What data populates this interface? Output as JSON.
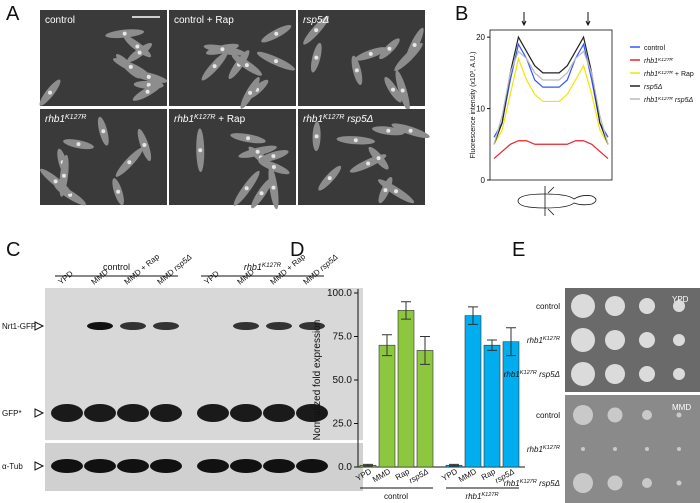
{
  "panels": {
    "a": {
      "label": "A",
      "images": [
        [
          {
            "t": "control"
          }
        ],
        [
          {
            "t": "control + Rap"
          }
        ],
        [
          {
            "i": "rsp5Δ"
          }
        ],
        [
          {
            "i": "rhb1"
          },
          {
            "sup": "K127R"
          }
        ],
        [
          {
            "i": "rhb1"
          },
          {
            "sup": "K127R"
          },
          {
            "t": " + Rap"
          }
        ],
        [
          {
            "i": "rhb1"
          },
          {
            "sup": "K127R"
          },
          {
            "i": " rsp5Δ"
          }
        ]
      ]
    },
    "b": {
      "label": "B",
      "chart_data": {
        "type": "line",
        "y_label": "Fluorescence intensity (x10³, A.U.)",
        "ylim": [
          0,
          21
        ],
        "yticks": [
          0,
          10,
          20
        ],
        "series": [
          {
            "name": [
              {
                "t": "control"
              }
            ],
            "color": "#3355ff",
            "values": [
              6,
              8,
              14,
              19,
              17,
              14,
              13,
              13,
              13,
              14,
              17,
              19,
              14,
              8,
              6
            ]
          },
          {
            "name": [
              {
                "i": "rhb1"
              },
              {
                "sup": "K127R"
              }
            ],
            "color": "#e8262b",
            "values": [
              3,
              4,
              5,
              5.5,
              5.5,
              5,
              5,
              5,
              5,
              5,
              5.5,
              5.5,
              5,
              4,
              3
            ]
          },
          {
            "name": [
              {
                "i": "rhb1"
              },
              {
                "sup": "K127R"
              },
              {
                "t": " + Rap"
              }
            ],
            "color": "#f2e500",
            "values": [
              5,
              7,
              12,
              17,
              14,
              12,
              11,
              11,
              11,
              12,
              14,
              16,
              12,
              7,
              5
            ]
          },
          {
            "name": [
              {
                "i": "rsp5Δ"
              }
            ],
            "color": "#222222",
            "values": [
              5,
              8,
              15,
              20,
              18,
              16,
              15,
              15,
              15,
              16,
              18,
              20,
              15,
              8,
              5
            ]
          },
          {
            "name": [
              {
                "i": "rhb1"
              },
              {
                "sup": "K127R"
              },
              {
                "i": " rsp5Δ"
              }
            ],
            "color": "#bbbbbb",
            "values": [
              5,
              9,
              15,
              18,
              17,
              15,
              14,
              14,
              14,
              15,
              17,
              18,
              15,
              9,
              5
            ]
          }
        ]
      }
    },
    "c": {
      "label": "C",
      "groups": [
        [
          {
            "t": "control"
          }
        ],
        [
          {
            "i": "rhb1"
          },
          {
            "sup": "K127R"
          }
        ]
      ],
      "lanes": [
        [
          {
            "t": "YPD"
          }
        ],
        [
          {
            "t": "MMD"
          }
        ],
        [
          {
            "t": "MMD + Rap"
          }
        ],
        [
          {
            "t": "MMD "
          },
          {
            "i": "rsp5Δ"
          }
        ],
        [
          {
            "t": "YPD"
          }
        ],
        [
          {
            "t": "MMD"
          }
        ],
        [
          {
            "t": "MMD + Rap"
          }
        ],
        [
          {
            "t": "MMD "
          },
          {
            "i": "rsp5Δ"
          }
        ]
      ],
      "bands": [
        "Nrt1-GFP",
        "GFP*",
        "α-Tub"
      ]
    },
    "d": {
      "label": "D",
      "chart_data": {
        "type": "bar",
        "y_label": "Normalized fold expression",
        "categories": [
          [
            {
              "t": "YPD"
            }
          ],
          [
            {
              "t": "MMD"
            }
          ],
          [
            {
              "t": "Rap"
            }
          ],
          [
            {
              "i": "rsp5Δ"
            }
          ]
        ],
        "ylim": [
          0,
          100
        ],
        "yticks": [
          {
            "value": 0,
            "label": "0.0"
          },
          {
            "value": 25,
            "label": "25.0"
          },
          {
            "value": 50,
            "label": "50.0"
          },
          {
            "value": 75,
            "label": "75.0"
          },
          {
            "value": 100,
            "label": "100.0"
          }
        ],
        "series": [
          {
            "name": [
              {
                "t": "control"
              }
            ],
            "color": "#8dc63f",
            "values": [
              1,
              70,
              90,
              67
            ],
            "errors": [
              0.5,
              6,
              5,
              8
            ]
          },
          {
            "name": [
              {
                "i": "rhb1"
              },
              {
                "sup": "K127R"
              }
            ],
            "color": "#00aeef",
            "values": [
              1,
              87,
              70,
              72
            ],
            "errors": [
              0.5,
              5,
              3,
              8
            ]
          }
        ]
      }
    },
    "e": {
      "label": "E",
      "media": [
        "YPD",
        "MMD"
      ],
      "strains": [
        [
          [
            {
              "t": "control"
            }
          ],
          [
            {
              "i": "rhb1"
            },
            {
              "sup": "K127R"
            }
          ],
          [
            {
              "i": "rhb1"
            },
            {
              "sup": "K127R"
            },
            {
              "i": " rsp5Δ"
            }
          ]
        ],
        [
          [
            {
              "t": "control"
            }
          ],
          [
            {
              "i": "rhb1"
            },
            {
              "sup": "K127R"
            }
          ],
          [
            {
              "i": "rhb1"
            },
            {
              "sup": "K127R"
            },
            {
              "i": " rsp5Δ"
            }
          ]
        ]
      ]
    }
  }
}
